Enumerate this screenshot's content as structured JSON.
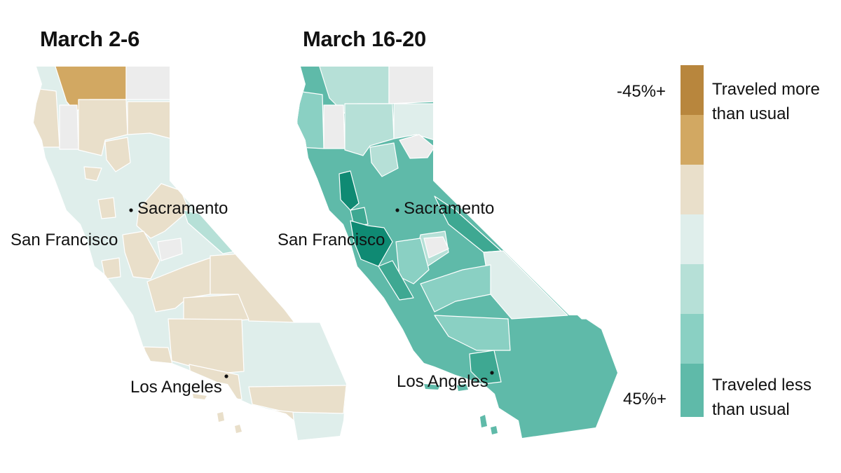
{
  "maps": [
    {
      "title": "March 2-6",
      "cities": [
        {
          "name": "Sacramento"
        },
        {
          "name": "San Francisco"
        },
        {
          "name": "Los Angeles"
        }
      ]
    },
    {
      "title": "March 16-20",
      "cities": [
        {
          "name": "Sacramento"
        },
        {
          "name": "San Francisco"
        },
        {
          "name": "Los Angeles"
        }
      ]
    }
  ],
  "legend": {
    "top_value": "-45%+",
    "bottom_value": "45%+",
    "top_label_line1": "Traveled more",
    "top_label_line2": "than usual",
    "bottom_label_line1": "Traveled less",
    "bottom_label_line2": "than usual",
    "colors": [
      "#b8863d",
      "#d2a862",
      "#e9dfca",
      "#dfeeeb",
      "#b6e0d7",
      "#8ad0c3",
      "#5fbaa9"
    ],
    "no_data_color": "#ececec"
  },
  "colors": {
    "dark_teal": "#0f8a73",
    "mid_teal": "#3ea892",
    "county_border": "#ffffff"
  }
}
